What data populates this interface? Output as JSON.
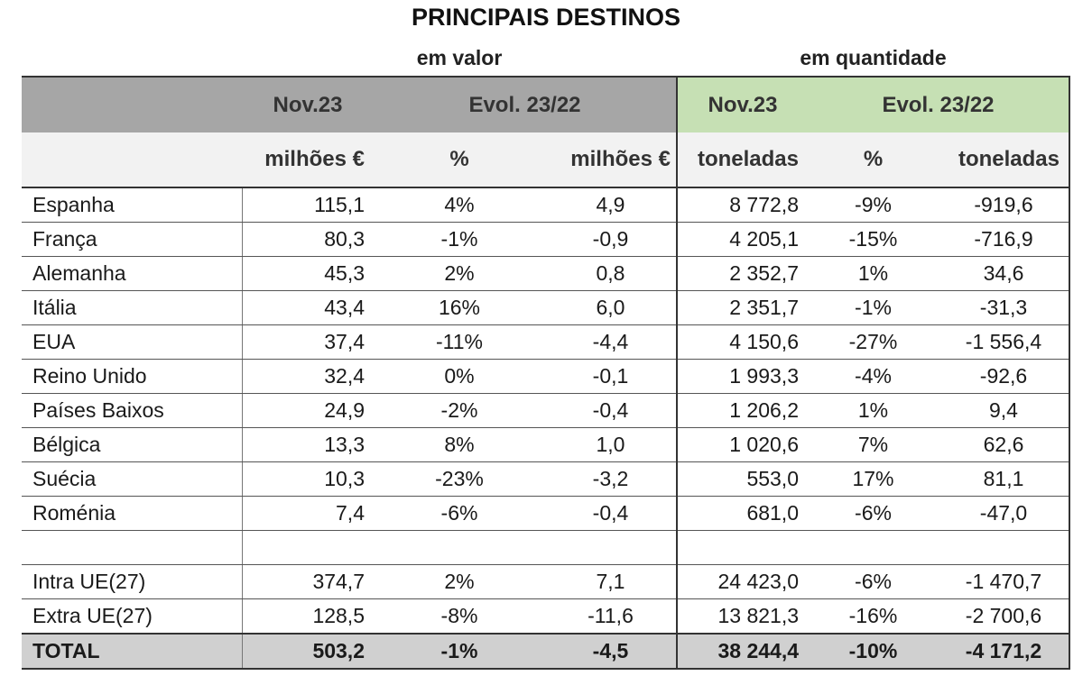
{
  "title": "PRINCIPAIS DESTINOS",
  "groups": {
    "valor": "em valor",
    "quantidade": "em quantidade"
  },
  "header": {
    "nov_valor": "Nov.23",
    "evol_valor": "Evol. 23/22",
    "nov_quant": "Nov.23",
    "evol_quant": "Evol. 23/22"
  },
  "units": [
    "milhões €",
    "%",
    "milhões €",
    "toneladas",
    "%",
    "toneladas"
  ],
  "rows": [
    [
      "Espanha",
      "115,1",
      "4%",
      "4,9",
      "8 772,8",
      "-9%",
      "-919,6"
    ],
    [
      "França",
      "80,3",
      "-1%",
      "-0,9",
      "4 205,1",
      "-15%",
      "-716,9"
    ],
    [
      "Alemanha",
      "45,3",
      "2%",
      "0,8",
      "2 352,7",
      "1%",
      "34,6"
    ],
    [
      "Itália",
      "43,4",
      "16%",
      "6,0",
      "2 351,7",
      "-1%",
      "-31,3"
    ],
    [
      "EUA",
      "37,4",
      "-11%",
      "-4,4",
      "4 150,6",
      "-27%",
      "-1 556,4"
    ],
    [
      "Reino Unido",
      "32,4",
      "0%",
      "-0,1",
      "1 993,3",
      "-4%",
      "-92,6"
    ],
    [
      "Países Baixos",
      "24,9",
      "-2%",
      "-0,4",
      "1 206,2",
      "1%",
      "9,4"
    ],
    [
      "Bélgica",
      "13,3",
      "8%",
      "1,0",
      "1 020,6",
      "7%",
      "62,6"
    ],
    [
      "Suécia",
      "10,3",
      "-23%",
      "-3,2",
      "553,0",
      "17%",
      "81,1"
    ],
    [
      "Roménia",
      "7,4",
      "-6%",
      "-0,4",
      "681,0",
      "-6%",
      "-47,0"
    ]
  ],
  "blocs": [
    [
      "Intra UE(27)",
      "374,7",
      "2%",
      "7,1",
      "24 423,0",
      "-6%",
      "-1 470,7"
    ],
    [
      "Extra UE(27)",
      "128,5",
      "-8%",
      "-11,6",
      "13 821,3",
      "-16%",
      "-2 700,6"
    ]
  ],
  "total": [
    "TOTAL",
    "503,2",
    "-1%",
    "-4,5",
    "38 244,4",
    "-10%",
    "-4 171,2"
  ],
  "colors": {
    "header_grey": "#a6a6a6",
    "header_green": "#c6e0b4",
    "total_grey": "#d0d0d0",
    "subheader_grey": "#f2f2f2"
  }
}
